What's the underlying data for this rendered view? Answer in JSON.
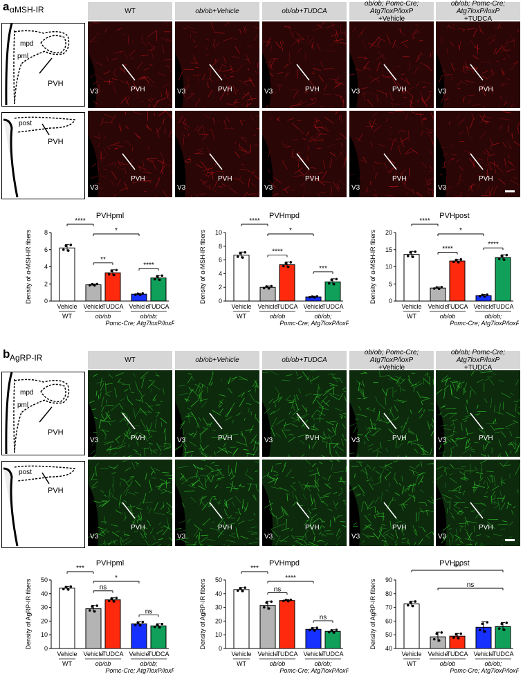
{
  "panel_a": {
    "letter": "a",
    "ir_label": "αMSH-IR",
    "headers": [
      {
        "line1": "WT",
        "line2": ""
      },
      {
        "line1": "ob/ob+Vehicle",
        "line2": ""
      },
      {
        "line1": "ob/ob+TUDCA",
        "line2": ""
      },
      {
        "line1": "ob/ob; Pomc-Cre; Atg7loxP/loxP",
        "line2": "+Vehicle"
      },
      {
        "line1": "ob/ob; Pomc-Cre; Atg7loxP/loxP",
        "line2": "+TUDCA"
      }
    ],
    "micro_labels": {
      "v3": "V3",
      "pvh": "PVH"
    },
    "schematic_top": {
      "mpd": "mpd",
      "pml": "pml",
      "pvh": "PVH"
    },
    "schematic_bottom": {
      "post": "post",
      "pvh": "PVH"
    },
    "color": "#c0141c"
  },
  "panel_b": {
    "letter": "b",
    "ir_label": "AgRP-IR",
    "headers": [
      {
        "line1": "WT",
        "line2": ""
      },
      {
        "line1": "ob/ob+Vehicle",
        "line2": ""
      },
      {
        "line1": "ob/ob+TUDCA",
        "line2": ""
      },
      {
        "line1": "ob/ob; Pomc-Cre; Atg7loxP/loxP",
        "line2": "+Vehicle"
      },
      {
        "line1": "ob/ob; Pomc-Cre; Atg7loxP/loxP",
        "line2": "+TUDCA"
      }
    ],
    "micro_labels": {
      "v3": "V3",
      "pvh": "PVH"
    },
    "schematic_top": {
      "mpd": "mpd",
      "pml": "pml",
      "pvh": "PVH"
    },
    "schematic_bottom": {
      "post": "post",
      "pvh": "PVH"
    },
    "color": "#2fc52a"
  },
  "group_labels": {
    "vehicle": "Vehicle",
    "tudca": "TUDCA",
    "wt": "WT",
    "obob": "ob/ob",
    "obob2": "ob/ob;",
    "pomc": "Pomc-Cre; Atg7loxP/loxP"
  },
  "bar_colors": [
    "#ffffff",
    "#b4b4b4",
    "#ff2a0e",
    "#1630ff",
    "#10a05a"
  ],
  "chart_data": [
    {
      "type": "bar",
      "title": "PVHpml",
      "ylabel": "Density of α-MSH-IR fibers",
      "ylim": [
        0,
        8
      ],
      "yticks": [
        "0",
        "2",
        "4",
        "6",
        "8"
      ],
      "values": [
        6.2,
        1.9,
        3.3,
        0.8,
        2.7
      ],
      "errors": [
        0.4,
        0.1,
        0.35,
        0.1,
        0.3
      ],
      "sig": [
        {
          "g1": 0,
          "g2": 1,
          "label": "****"
        },
        {
          "g1": 1,
          "g2": 3,
          "label": "*"
        },
        {
          "g1": 1,
          "g2": 2,
          "label": "**"
        },
        {
          "g1": 3,
          "g2": 4,
          "label": "****"
        }
      ]
    },
    {
      "type": "bar",
      "title": "PVHmpd",
      "ylabel": "Density of α-MSH-IR fibers",
      "ylim": [
        0,
        10
      ],
      "yticks": [
        "0",
        "2",
        "4",
        "6",
        "8",
        "10"
      ],
      "values": [
        6.7,
        2.0,
        5.3,
        0.6,
        2.8
      ],
      "errors": [
        0.45,
        0.2,
        0.4,
        0.1,
        0.45
      ],
      "sig": [
        {
          "g1": 0,
          "g2": 1,
          "label": "****"
        },
        {
          "g1": 1,
          "g2": 3,
          "label": "*"
        },
        {
          "g1": 1,
          "g2": 2,
          "label": "****"
        },
        {
          "g1": 3,
          "g2": 4,
          "label": "***"
        }
      ]
    },
    {
      "type": "bar",
      "title": "PVHpost",
      "ylabel": "Density of α-MSH-IR fibers",
      "ylim": [
        0,
        20
      ],
      "yticks": [
        "0",
        "5",
        "10",
        "15",
        "20"
      ],
      "values": [
        13.6,
        3.8,
        11.7,
        1.6,
        12.7
      ],
      "errors": [
        0.9,
        0.3,
        0.5,
        0.3,
        0.8
      ],
      "sig": [
        {
          "g1": 0,
          "g2": 1,
          "label": "****"
        },
        {
          "g1": 1,
          "g2": 3,
          "label": "*"
        },
        {
          "g1": 1,
          "g2": 2,
          "label": "****"
        },
        {
          "g1": 3,
          "g2": 4,
          "label": "****"
        }
      ]
    },
    {
      "type": "bar",
      "title": "PVHpml",
      "ylabel": "Density of AgRP-IR fibers",
      "ylim": [
        0,
        50
      ],
      "yticks": [
        "0",
        "10",
        "20",
        "30",
        "40",
        "50"
      ],
      "values": [
        44,
        29,
        35.5,
        18,
        16.5
      ],
      "errors": [
        1.3,
        2.5,
        1.5,
        1.5,
        1.5
      ],
      "sig": [
        {
          "g1": 0,
          "g2": 1,
          "label": "***"
        },
        {
          "g1": 1,
          "g2": 3,
          "label": "*"
        },
        {
          "g1": 1,
          "g2": 2,
          "label": "ns"
        },
        {
          "g1": 3,
          "g2": 4,
          "label": "ns"
        }
      ]
    },
    {
      "type": "bar",
      "title": "PVHmpd",
      "ylabel": "Density of AgRP-IR fibers",
      "ylim": [
        0,
        50
      ],
      "yticks": [
        "0",
        "10",
        "20",
        "30",
        "40",
        "50"
      ],
      "values": [
        43,
        31.5,
        35,
        14,
        12.5
      ],
      "errors": [
        1.5,
        3,
        0.6,
        1.2,
        1.2
      ],
      "sig": [
        {
          "g1": 0,
          "g2": 1,
          "label": "***"
        },
        {
          "g1": 1,
          "g2": 3,
          "label": "****"
        },
        {
          "g1": 1,
          "g2": 2,
          "label": "ns"
        },
        {
          "g1": 3,
          "g2": 4,
          "label": "ns"
        }
      ]
    },
    {
      "type": "bar",
      "title": "PVHpost",
      "ylabel": "Density of AgRP-IR fibers",
      "ylim": [
        40,
        90
      ],
      "yticks": [
        "40",
        "50",
        "60",
        "70",
        "80",
        "90"
      ],
      "values": [
        72.5,
        48.5,
        49,
        55.5,
        56
      ],
      "errors": [
        2,
        3.5,
        2,
        4,
        3
      ],
      "sig": [
        {
          "g1": 0,
          "g2": 4,
          "label": "***"
        },
        {
          "g1": 1,
          "g2": 4,
          "label": "ns"
        }
      ]
    }
  ]
}
